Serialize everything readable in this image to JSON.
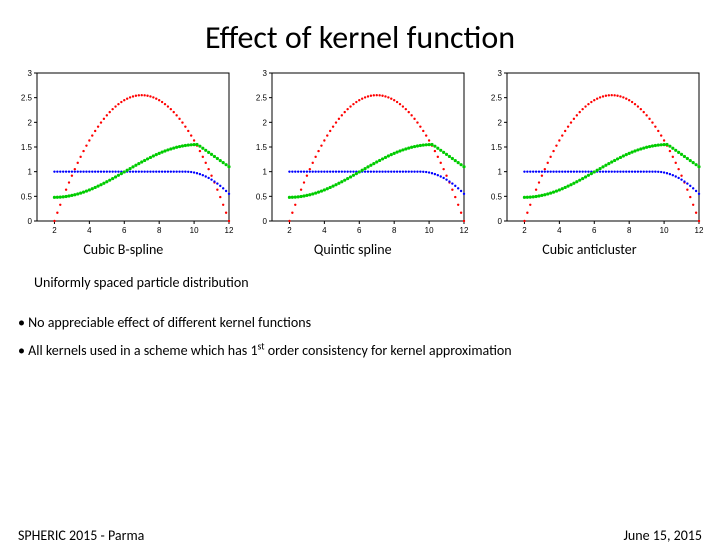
{
  "title": "Effect of kernel function",
  "charts": [
    {
      "caption": "Cubic B-spline"
    },
    {
      "caption": "Quintic spline"
    },
    {
      "caption": "Cubic anticluster"
    }
  ],
  "chart_config": {
    "xlim": [
      1,
      12
    ],
    "ylim": [
      0,
      3
    ],
    "xticks": [
      2,
      4,
      6,
      8,
      10,
      12
    ],
    "yticks": [
      0,
      0.5,
      1.0,
      1.5,
      2.0,
      2.5,
      3.0
    ],
    "ytick_labels": [
      "0",
      "0.5",
      "1",
      "1.5",
      "2",
      "2.5",
      "3"
    ],
    "background_color": "#ffffff",
    "axis_color": "#000000",
    "series": {
      "red": {
        "type": "parabola",
        "color": "#ff0000",
        "marker_size": 1.2,
        "x_range": [
          2,
          12
        ],
        "peak_x": 7,
        "peak_y": 2.55,
        "base_y": 0
      },
      "blue": {
        "type": "plateau",
        "color": "#0000ff",
        "marker_size": 1.2,
        "x_range": [
          2,
          12
        ],
        "plateau_y": 1.0,
        "rolloff_start": 9.5,
        "rolloff_end_y": 0.55
      },
      "green": {
        "type": "rising",
        "color": "#00cc00",
        "marker_size": 1.6,
        "x_range": [
          2,
          12
        ],
        "start_y": 0.48,
        "peak_x": 10.2,
        "peak_y": 1.55,
        "fall_end_y": 1.1
      }
    }
  },
  "subtitle": "Uniformly spaced particle distribution",
  "bullets": [
    "No appreciable effect of different kernel functions",
    "All kernels used in a scheme which has 1<sup>st</sup> order consistency for kernel approximation"
  ],
  "footer_left": "SPHERIC 2015 - Parma",
  "footer_right": "June 15, 2015"
}
